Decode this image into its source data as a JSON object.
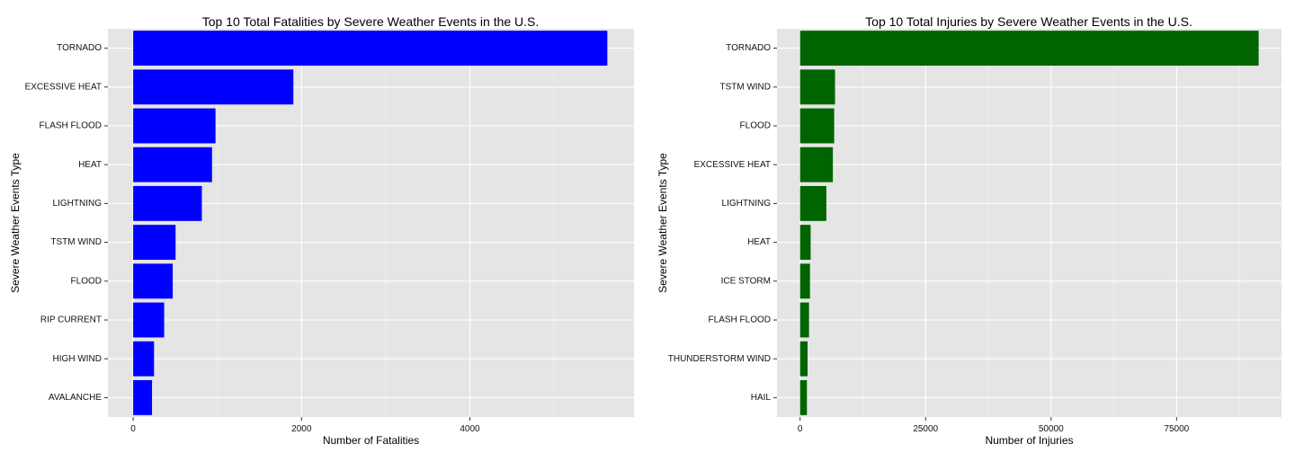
{
  "chart_data": [
    {
      "type": "bar",
      "orientation": "horizontal",
      "title": "Top 10 Total Fatalities by Severe Weather Events in the U.S.",
      "xlabel": "Number of Fatalities",
      "ylabel": "Severe Weather Events Type",
      "categories": [
        "TORNADO",
        "EXCESSIVE HEAT",
        "FLASH FLOOD",
        "HEAT",
        "LIGHTNING",
        "TSTM WIND",
        "FLOOD",
        "RIP CURRENT",
        "HIGH WIND",
        "AVALANCHE"
      ],
      "values": [
        5633,
        1903,
        978,
        937,
        816,
        504,
        470,
        368,
        248,
        224
      ],
      "xticks": [
        0,
        2000,
        4000
      ],
      "xtick_labels": [
        "0",
        "2000",
        "4000"
      ],
      "xlim": [
        -300,
        5950
      ],
      "bar_color": "#0000ff",
      "grid": true
    },
    {
      "type": "bar",
      "orientation": "horizontal",
      "title": "Top 10 Total Injuries by Severe Weather Events in the U.S.",
      "xlabel": "Number of Injuries",
      "ylabel": "Severe Weather Events Type",
      "categories": [
        "TORNADO",
        "TSTM WIND",
        "FLOOD",
        "EXCESSIVE HEAT",
        "LIGHTNING",
        "HEAT",
        "ICE STORM",
        "FLASH FLOOD",
        "THUNDERSTORM WIND",
        "HAIL"
      ],
      "values": [
        91346,
        6957,
        6789,
        6525,
        5230,
        2100,
        1975,
        1777,
        1488,
        1361
      ],
      "xticks": [
        0,
        25000,
        50000,
        75000
      ],
      "xtick_labels": [
        "0",
        "25000",
        "50000",
        "75000"
      ],
      "xlim": [
        -4600,
        95900
      ],
      "bar_color": "#006400",
      "grid": true
    }
  ]
}
